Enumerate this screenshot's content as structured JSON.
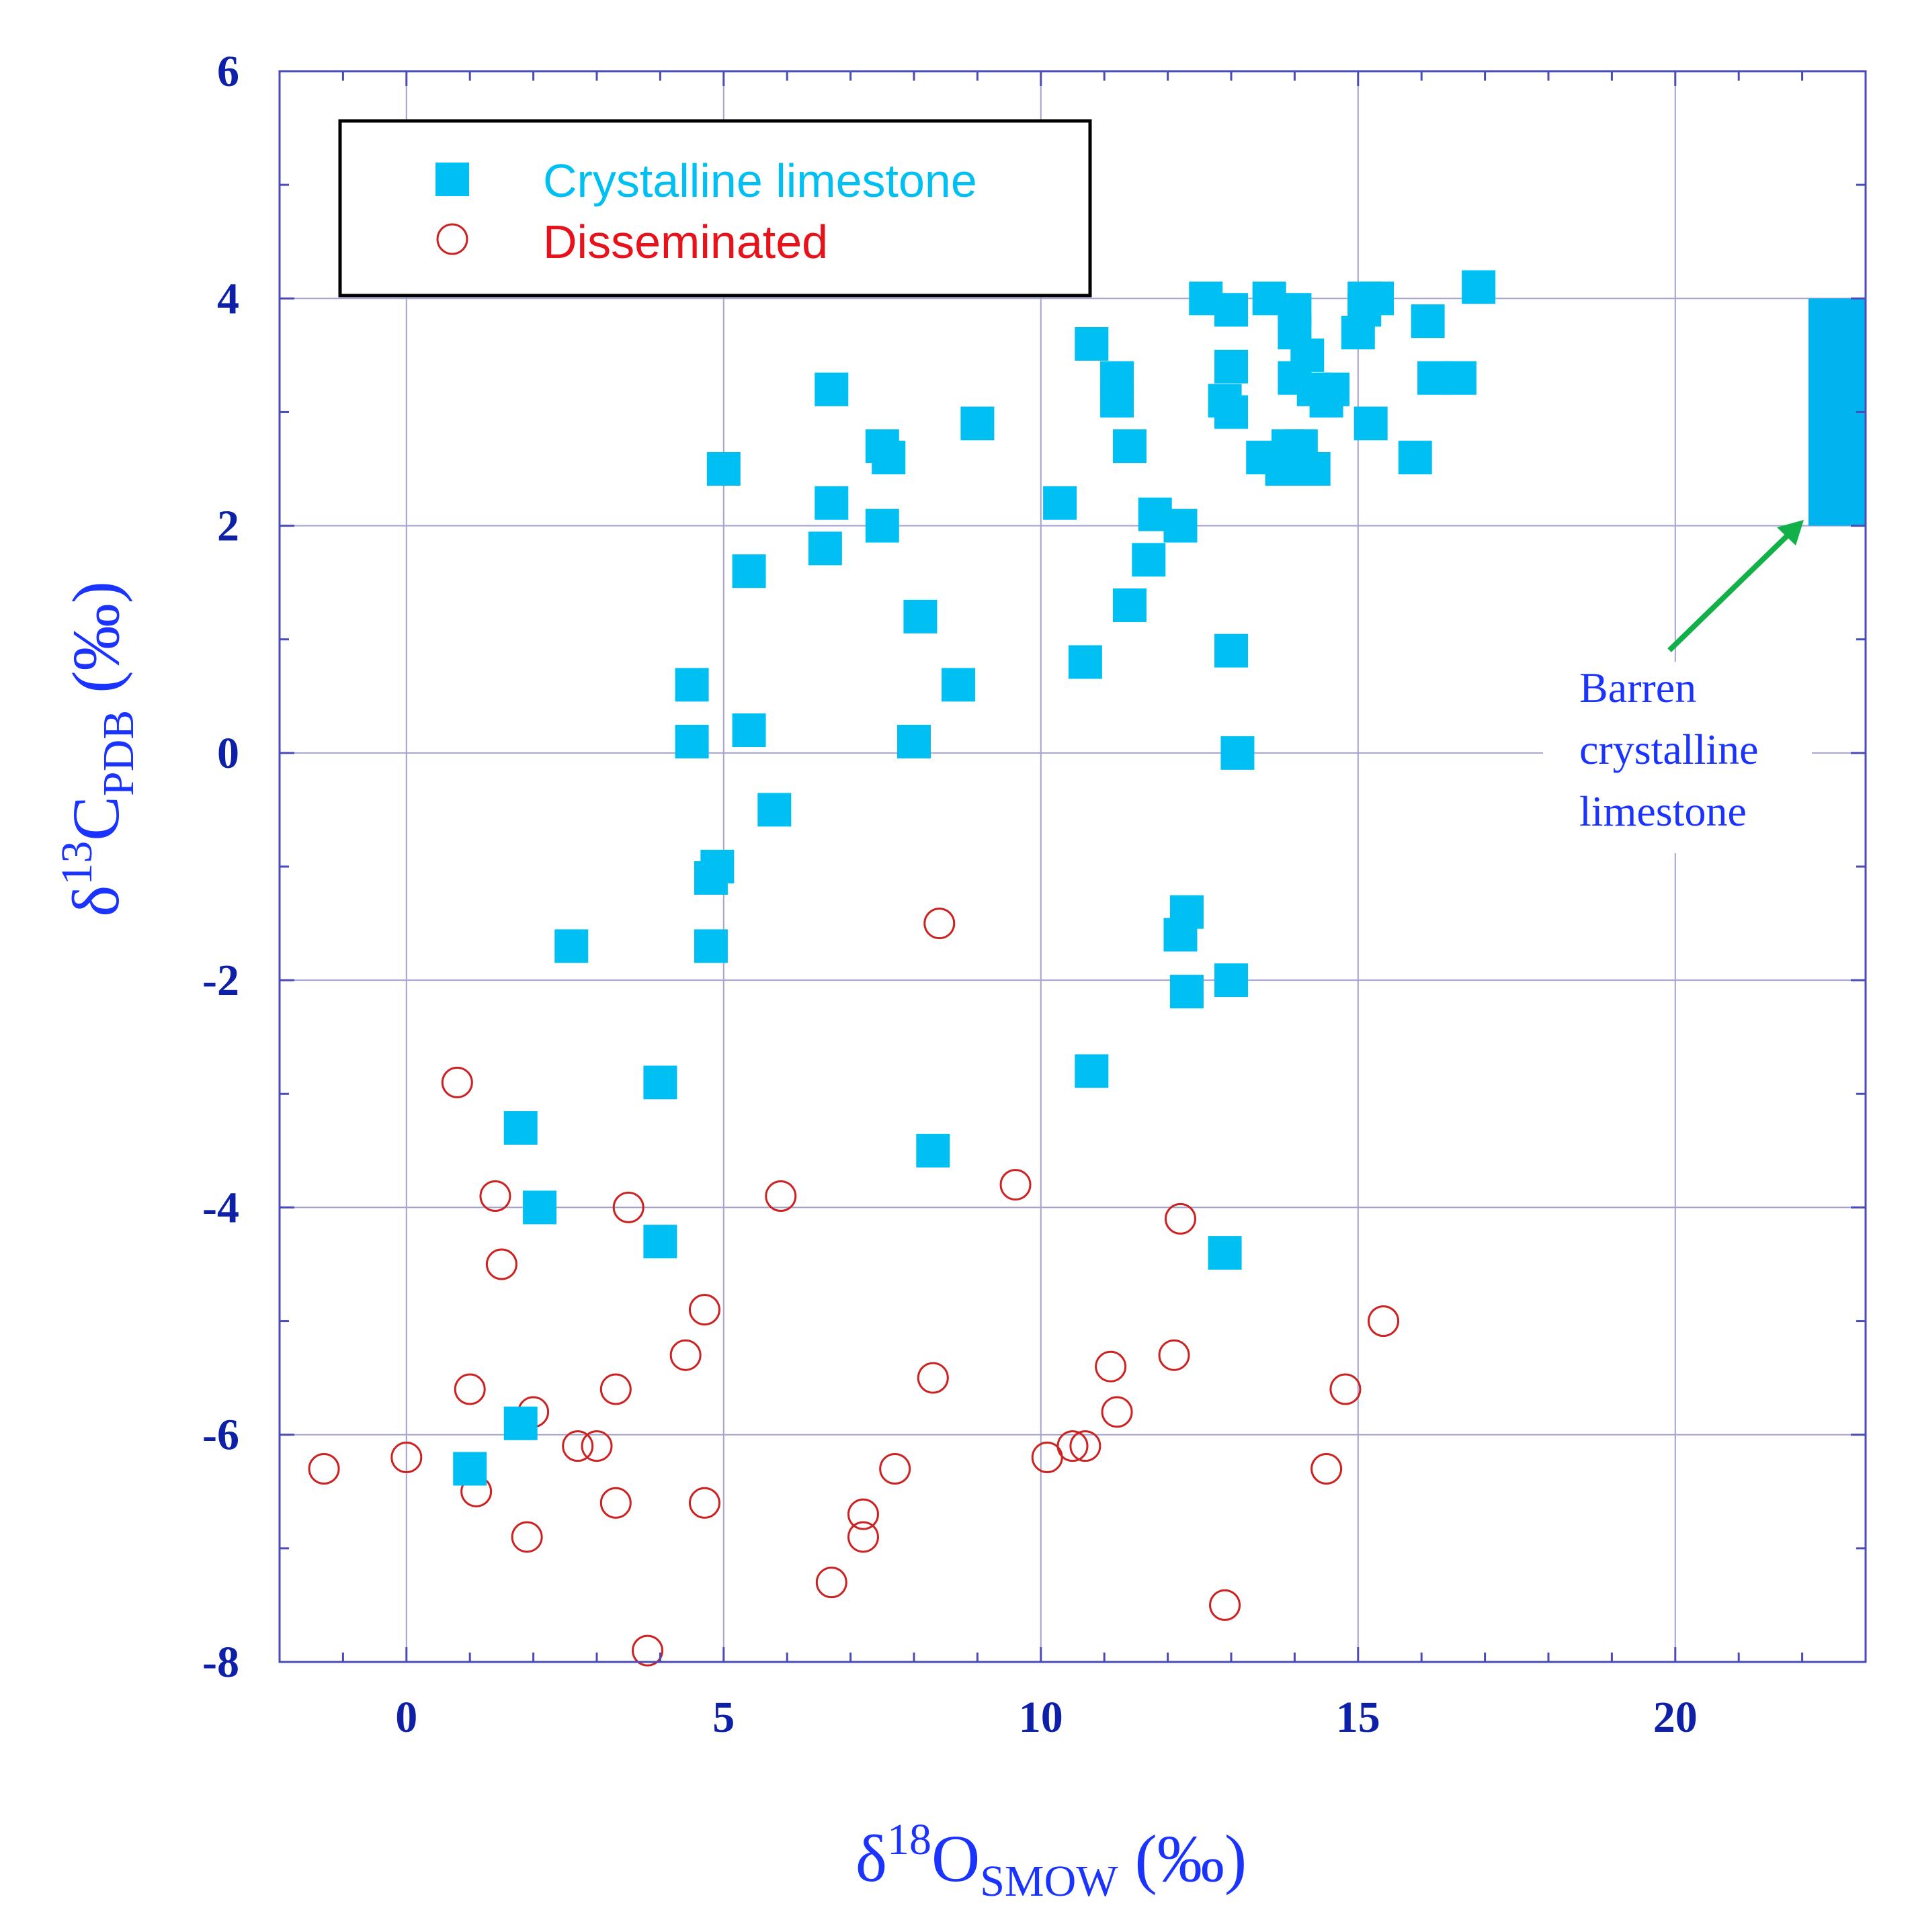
{
  "chart_data": {
    "type": "scatter",
    "title": "",
    "xlabel": {
      "prefix": "δ",
      "sup": "18",
      "main": "O",
      "sub": "SMOW",
      "suffix": " (‰)"
    },
    "ylabel": {
      "prefix": "δ",
      "sup": "13",
      "main": "C",
      "sub": "PDB",
      "suffix": " (‰)"
    },
    "xlim": [
      -2,
      23
    ],
    "ylim": [
      -8,
      6
    ],
    "xticks": [
      0,
      5,
      10,
      15,
      20
    ],
    "xtick_labels": [
      "0",
      "5",
      "10",
      "15",
      "20"
    ],
    "yticks": [
      -8,
      -6,
      -4,
      -2,
      0,
      2,
      4,
      6
    ],
    "ytick_labels": [
      "-8",
      "-6",
      "-4",
      "-2",
      "0",
      "2",
      "4",
      "6"
    ],
    "grid": true,
    "legend_position": "top-left",
    "series": [
      {
        "name": "Crystalline limestone",
        "marker": "filled-square",
        "color": "#00c0f3",
        "label_color": "#00c0f3",
        "points": [
          [
            1.0,
            -6.3
          ],
          [
            1.8,
            -5.9
          ],
          [
            2.1,
            -4.0
          ],
          [
            1.8,
            -3.3
          ],
          [
            2.6,
            -1.7
          ],
          [
            4.0,
            -2.9
          ],
          [
            4.0,
            -4.3
          ],
          [
            4.5,
            0.6
          ],
          [
            4.5,
            0.1
          ],
          [
            4.8,
            -1.7
          ],
          [
            4.8,
            -1.1
          ],
          [
            4.9,
            -1.0
          ],
          [
            5.0,
            2.5
          ],
          [
            5.4,
            1.6
          ],
          [
            5.4,
            0.2
          ],
          [
            5.8,
            -0.5
          ],
          [
            6.6,
            1.8
          ],
          [
            6.7,
            2.2
          ],
          [
            6.7,
            3.2
          ],
          [
            7.5,
            2.7
          ],
          [
            7.6,
            2.6
          ],
          [
            7.5,
            2.0
          ],
          [
            8.1,
            1.2
          ],
          [
            8.0,
            0.1
          ],
          [
            8.7,
            0.6
          ],
          [
            9.0,
            2.9
          ],
          [
            8.3,
            -3.5
          ],
          [
            10.3,
            2.2
          ],
          [
            10.7,
            0.8
          ],
          [
            10.8,
            3.6
          ],
          [
            10.8,
            -2.8
          ],
          [
            11.2,
            3.3
          ],
          [
            11.2,
            3.1
          ],
          [
            11.4,
            2.7
          ],
          [
            11.4,
            1.3
          ],
          [
            11.7,
            1.7
          ],
          [
            11.8,
            2.1
          ],
          [
            12.2,
            2.0
          ],
          [
            12.3,
            -1.4
          ],
          [
            12.2,
            -1.6
          ],
          [
            12.3,
            -2.1
          ],
          [
            12.6,
            4.0
          ],
          [
            12.9,
            3.1
          ],
          [
            13.0,
            3.0
          ],
          [
            13.0,
            3.4
          ],
          [
            13.0,
            3.9
          ],
          [
            13.0,
            0.9
          ],
          [
            13.1,
            0.0
          ],
          [
            13.0,
            -2.0
          ],
          [
            12.9,
            -4.4
          ],
          [
            13.5,
            2.6
          ],
          [
            13.6,
            4.0
          ],
          [
            13.8,
            2.5
          ],
          [
            13.9,
            2.7
          ],
          [
            14.0,
            3.9
          ],
          [
            14.0,
            3.7
          ],
          [
            14.0,
            3.3
          ],
          [
            14.2,
            3.5
          ],
          [
            14.1,
            2.7
          ],
          [
            14.3,
            2.5
          ],
          [
            14.3,
            3.2
          ],
          [
            14.5,
            3.1
          ],
          [
            14.6,
            3.2
          ],
          [
            15.0,
            3.7
          ],
          [
            15.1,
            3.9
          ],
          [
            15.1,
            4.0
          ],
          [
            15.2,
            2.9
          ],
          [
            15.3,
            4.0
          ],
          [
            15.9,
            2.6
          ],
          [
            16.1,
            3.8
          ],
          [
            16.2,
            3.3
          ],
          [
            16.6,
            3.3
          ],
          [
            16.9,
            4.1
          ]
        ]
      },
      {
        "name": "Disseminated",
        "marker": "open-circle",
        "color": "#cc2222",
        "label_color": "#e8121b",
        "points": [
          [
            -1.3,
            -6.3
          ],
          [
            0.0,
            -6.2
          ],
          [
            0.8,
            -2.9
          ],
          [
            1.0,
            -5.6
          ],
          [
            1.1,
            -6.5
          ],
          [
            1.4,
            -3.9
          ],
          [
            1.5,
            -4.5
          ],
          [
            1.9,
            -6.9
          ],
          [
            2.0,
            -5.8
          ],
          [
            2.7,
            -6.1
          ],
          [
            3.0,
            -6.1
          ],
          [
            3.3,
            -5.6
          ],
          [
            3.3,
            -6.6
          ],
          [
            3.5,
            -4.0
          ],
          [
            3.8,
            -7.9
          ],
          [
            4.4,
            -5.3
          ],
          [
            4.7,
            -4.9
          ],
          [
            4.7,
            -6.6
          ],
          [
            5.9,
            -3.9
          ],
          [
            6.7,
            -7.3
          ],
          [
            7.2,
            -6.7
          ],
          [
            7.2,
            -6.9
          ],
          [
            7.7,
            -6.3
          ],
          [
            8.3,
            -5.5
          ],
          [
            8.4,
            -1.5
          ],
          [
            9.6,
            -3.8
          ],
          [
            10.1,
            -6.2
          ],
          [
            10.5,
            -6.1
          ],
          [
            10.7,
            -6.1
          ],
          [
            11.1,
            -5.4
          ],
          [
            11.2,
            -5.8
          ],
          [
            12.1,
            -5.3
          ],
          [
            12.2,
            -4.1
          ],
          [
            12.9,
            -7.5
          ],
          [
            14.5,
            -6.3
          ],
          [
            14.8,
            -5.6
          ],
          [
            15.4,
            -5.0
          ]
        ]
      }
    ],
    "range_box": {
      "x0": 22.1,
      "x1": 23,
      "y0": 2,
      "y1": 4,
      "color": "#00b4ef"
    },
    "annotation": {
      "lines": [
        "Barren",
        "crystalline",
        "limestone"
      ],
      "arrow_color": "#12b048",
      "arrow_tip": [
        22.1,
        2.0
      ]
    }
  }
}
